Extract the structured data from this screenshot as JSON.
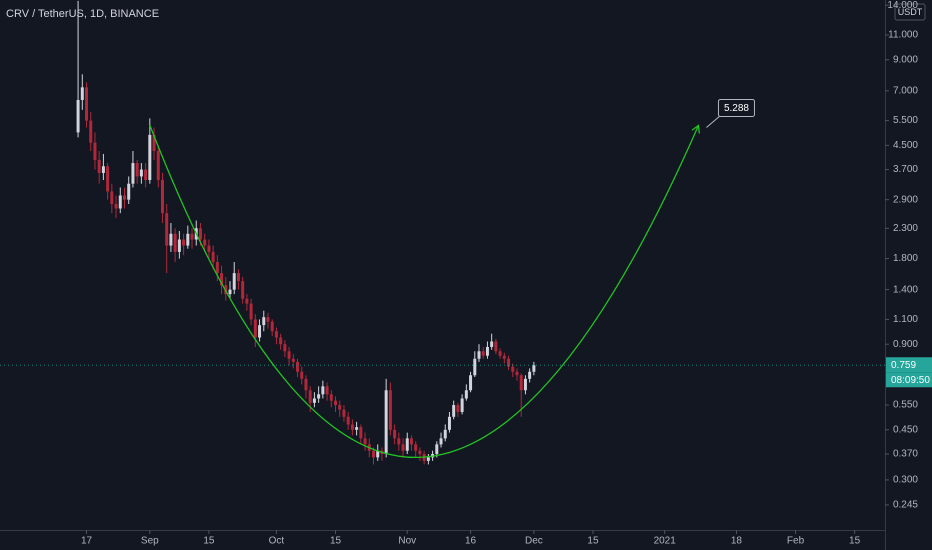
{
  "chart_data": {
    "type": "candlestick",
    "title": "CRV / TetherUS, 1D, BINANCE",
    "currency": "USDT",
    "log_scale": true,
    "grid": false,
    "up_color": "#d1d4dc",
    "down_color": "#b2283a",
    "xlim": [
      -18.5,
      191.2
    ],
    "xticks": [
      {
        "value": 2,
        "label": "17"
      },
      {
        "value": 17,
        "label": "Sep"
      },
      {
        "value": 31,
        "label": "15"
      },
      {
        "value": 47,
        "label": "Oct"
      },
      {
        "value": 61,
        "label": "15"
      },
      {
        "value": 78,
        "label": "Nov"
      },
      {
        "value": 93,
        "label": "16"
      },
      {
        "value": 108,
        "label": "Dec"
      },
      {
        "value": 122,
        "label": "15"
      },
      {
        "value": 139,
        "label": "2021"
      },
      {
        "value": 156,
        "label": "18"
      },
      {
        "value": 170,
        "label": "Feb"
      },
      {
        "value": 184,
        "label": "15"
      }
    ],
    "ylim": [
      0.2,
      14.6
    ],
    "yticks": [
      {
        "value": 14,
        "label": "14.000"
      },
      {
        "value": 11,
        "label": "11.000"
      },
      {
        "value": 9,
        "label": "9.000"
      },
      {
        "value": 7,
        "label": "7.000"
      },
      {
        "value": 5.5,
        "label": "5.500"
      },
      {
        "value": 4.5,
        "label": "4.500"
      },
      {
        "value": 3.7,
        "label": "3.700"
      },
      {
        "value": 2.9,
        "label": "2.900"
      },
      {
        "value": 2.3,
        "label": "2.300"
      },
      {
        "value": 1.8,
        "label": "1.800"
      },
      {
        "value": 1.4,
        "label": "1.400"
      },
      {
        "value": 1.1,
        "label": "1.100"
      },
      {
        "value": 0.9,
        "label": "0.900"
      },
      {
        "value": 0.55,
        "label": "0.550"
      },
      {
        "value": 0.45,
        "label": "0.450"
      },
      {
        "value": 0.37,
        "label": "0.370"
      },
      {
        "value": 0.3,
        "label": "0.300"
      },
      {
        "value": 0.245,
        "label": "0.245"
      }
    ],
    "open": [
      5.0,
      6.5,
      7.2,
      5.5,
      4.6,
      4.0,
      3.6,
      3.8,
      3.1,
      2.8,
      2.7,
      3.0,
      2.9,
      3.3,
      3.9,
      3.5,
      3.7,
      3.4,
      4.9,
      4.3,
      3.4,
      2.6,
      2.0,
      2.2,
      1.9,
      2.1,
      2.0,
      2.2,
      2.1,
      2.3,
      2.1,
      2.0,
      1.9,
      1.75,
      1.6,
      1.45,
      1.35,
      1.4,
      1.6,
      1.5,
      1.3,
      1.25,
      1.1,
      0.95,
      1.05,
      1.12,
      1.08,
      1.0,
      0.95,
      0.9,
      0.85,
      0.8,
      0.78,
      0.72,
      0.68,
      0.62,
      0.56,
      0.58,
      0.6,
      0.64,
      0.6,
      0.57,
      0.55,
      0.53,
      0.5,
      0.47,
      0.45,
      0.46,
      0.42,
      0.4,
      0.38,
      0.36,
      0.38,
      0.37,
      0.62,
      0.45,
      0.42,
      0.4,
      0.38,
      0.42,
      0.4,
      0.38,
      0.37,
      0.35,
      0.36,
      0.37,
      0.4,
      0.42,
      0.45,
      0.5,
      0.55,
      0.52,
      0.58,
      0.62,
      0.7,
      0.8,
      0.85,
      0.82,
      0.88,
      0.92,
      0.85,
      0.82,
      0.8,
      0.75,
      0.72,
      0.7,
      0.62,
      0.68,
      0.72
    ],
    "high": [
      14.5,
      8.0,
      7.5,
      5.9,
      5.0,
      4.3,
      4.2,
      3.9,
      3.3,
      3.0,
      3.2,
      3.2,
      3.5,
      4.3,
      4.0,
      3.9,
      3.9,
      5.6,
      5.2,
      4.5,
      3.6,
      2.8,
      2.4,
      2.3,
      2.25,
      2.2,
      2.35,
      2.3,
      2.45,
      2.4,
      2.2,
      2.1,
      2.0,
      1.85,
      1.7,
      1.55,
      1.5,
      1.75,
      1.65,
      1.55,
      1.35,
      1.3,
      1.15,
      1.1,
      1.18,
      1.16,
      1.1,
      1.03,
      0.98,
      0.93,
      0.88,
      0.83,
      0.8,
      0.75,
      0.7,
      0.64,
      0.61,
      0.64,
      0.67,
      0.66,
      0.62,
      0.59,
      0.57,
      0.55,
      0.52,
      0.49,
      0.48,
      0.47,
      0.44,
      0.42,
      0.39,
      0.4,
      0.39,
      0.68,
      0.66,
      0.47,
      0.44,
      0.42,
      0.44,
      0.43,
      0.41,
      0.39,
      0.38,
      0.37,
      0.38,
      0.41,
      0.44,
      0.47,
      0.52,
      0.57,
      0.56,
      0.6,
      0.65,
      0.72,
      0.85,
      0.9,
      0.88,
      0.92,
      0.98,
      0.94,
      0.87,
      0.84,
      0.82,
      0.77,
      0.74,
      0.71,
      0.7,
      0.74,
      0.78
    ],
    "low": [
      4.8,
      6.0,
      5.2,
      4.3,
      3.7,
      3.3,
      3.4,
      2.9,
      2.6,
      2.5,
      2.6,
      2.7,
      2.8,
      3.2,
      3.3,
      3.3,
      3.2,
      3.3,
      4.0,
      3.2,
      2.4,
      1.6,
      1.9,
      1.75,
      1.8,
      1.85,
      1.95,
      1.95,
      2.0,
      2.0,
      1.9,
      1.8,
      1.65,
      1.5,
      1.35,
      1.28,
      1.3,
      1.35,
      1.4,
      1.25,
      1.18,
      1.05,
      0.88,
      0.92,
      1.0,
      1.02,
      0.96,
      0.9,
      0.86,
      0.81,
      0.76,
      0.74,
      0.69,
      0.65,
      0.58,
      0.52,
      0.54,
      0.56,
      0.58,
      0.57,
      0.54,
      0.52,
      0.5,
      0.48,
      0.45,
      0.43,
      0.43,
      0.4,
      0.38,
      0.36,
      0.34,
      0.35,
      0.35,
      0.36,
      0.43,
      0.4,
      0.38,
      0.36,
      0.37,
      0.38,
      0.36,
      0.35,
      0.34,
      0.34,
      0.35,
      0.36,
      0.39,
      0.41,
      0.44,
      0.49,
      0.5,
      0.51,
      0.57,
      0.61,
      0.69,
      0.78,
      0.8,
      0.8,
      0.86,
      0.83,
      0.8,
      0.77,
      0.73,
      0.69,
      0.67,
      0.5,
      0.6,
      0.66,
      0.7
    ],
    "close": [
      6.5,
      7.2,
      5.5,
      4.6,
      4.0,
      3.6,
      3.8,
      3.1,
      2.8,
      2.7,
      3.0,
      2.9,
      3.3,
      3.9,
      3.5,
      3.7,
      3.4,
      4.9,
      4.3,
      3.4,
      2.6,
      2.0,
      2.2,
      1.9,
      2.1,
      2.0,
      2.2,
      2.1,
      2.3,
      2.1,
      2.0,
      1.9,
      1.75,
      1.6,
      1.45,
      1.35,
      1.4,
      1.6,
      1.5,
      1.3,
      1.25,
      1.1,
      0.95,
      1.05,
      1.12,
      1.08,
      1.0,
      0.95,
      0.9,
      0.85,
      0.8,
      0.78,
      0.72,
      0.68,
      0.62,
      0.56,
      0.58,
      0.6,
      0.64,
      0.6,
      0.57,
      0.55,
      0.53,
      0.5,
      0.47,
      0.45,
      0.46,
      0.42,
      0.4,
      0.38,
      0.36,
      0.38,
      0.37,
      0.62,
      0.45,
      0.42,
      0.4,
      0.38,
      0.42,
      0.4,
      0.38,
      0.37,
      0.35,
      0.36,
      0.37,
      0.4,
      0.42,
      0.45,
      0.5,
      0.55,
      0.52,
      0.58,
      0.62,
      0.7,
      0.8,
      0.85,
      0.82,
      0.88,
      0.92,
      0.85,
      0.82,
      0.8,
      0.75,
      0.72,
      0.7,
      0.62,
      0.68,
      0.72,
      0.759
    ],
    "last_price": 0.759,
    "countdown": "08:09:50",
    "price_color": "#26a69a",
    "curve": {
      "color": "#22c322",
      "x": [
        17,
        80,
        147
      ],
      "y": [
        5.3,
        0.36,
        5.288
      ]
    },
    "target_label": 5.288
  }
}
